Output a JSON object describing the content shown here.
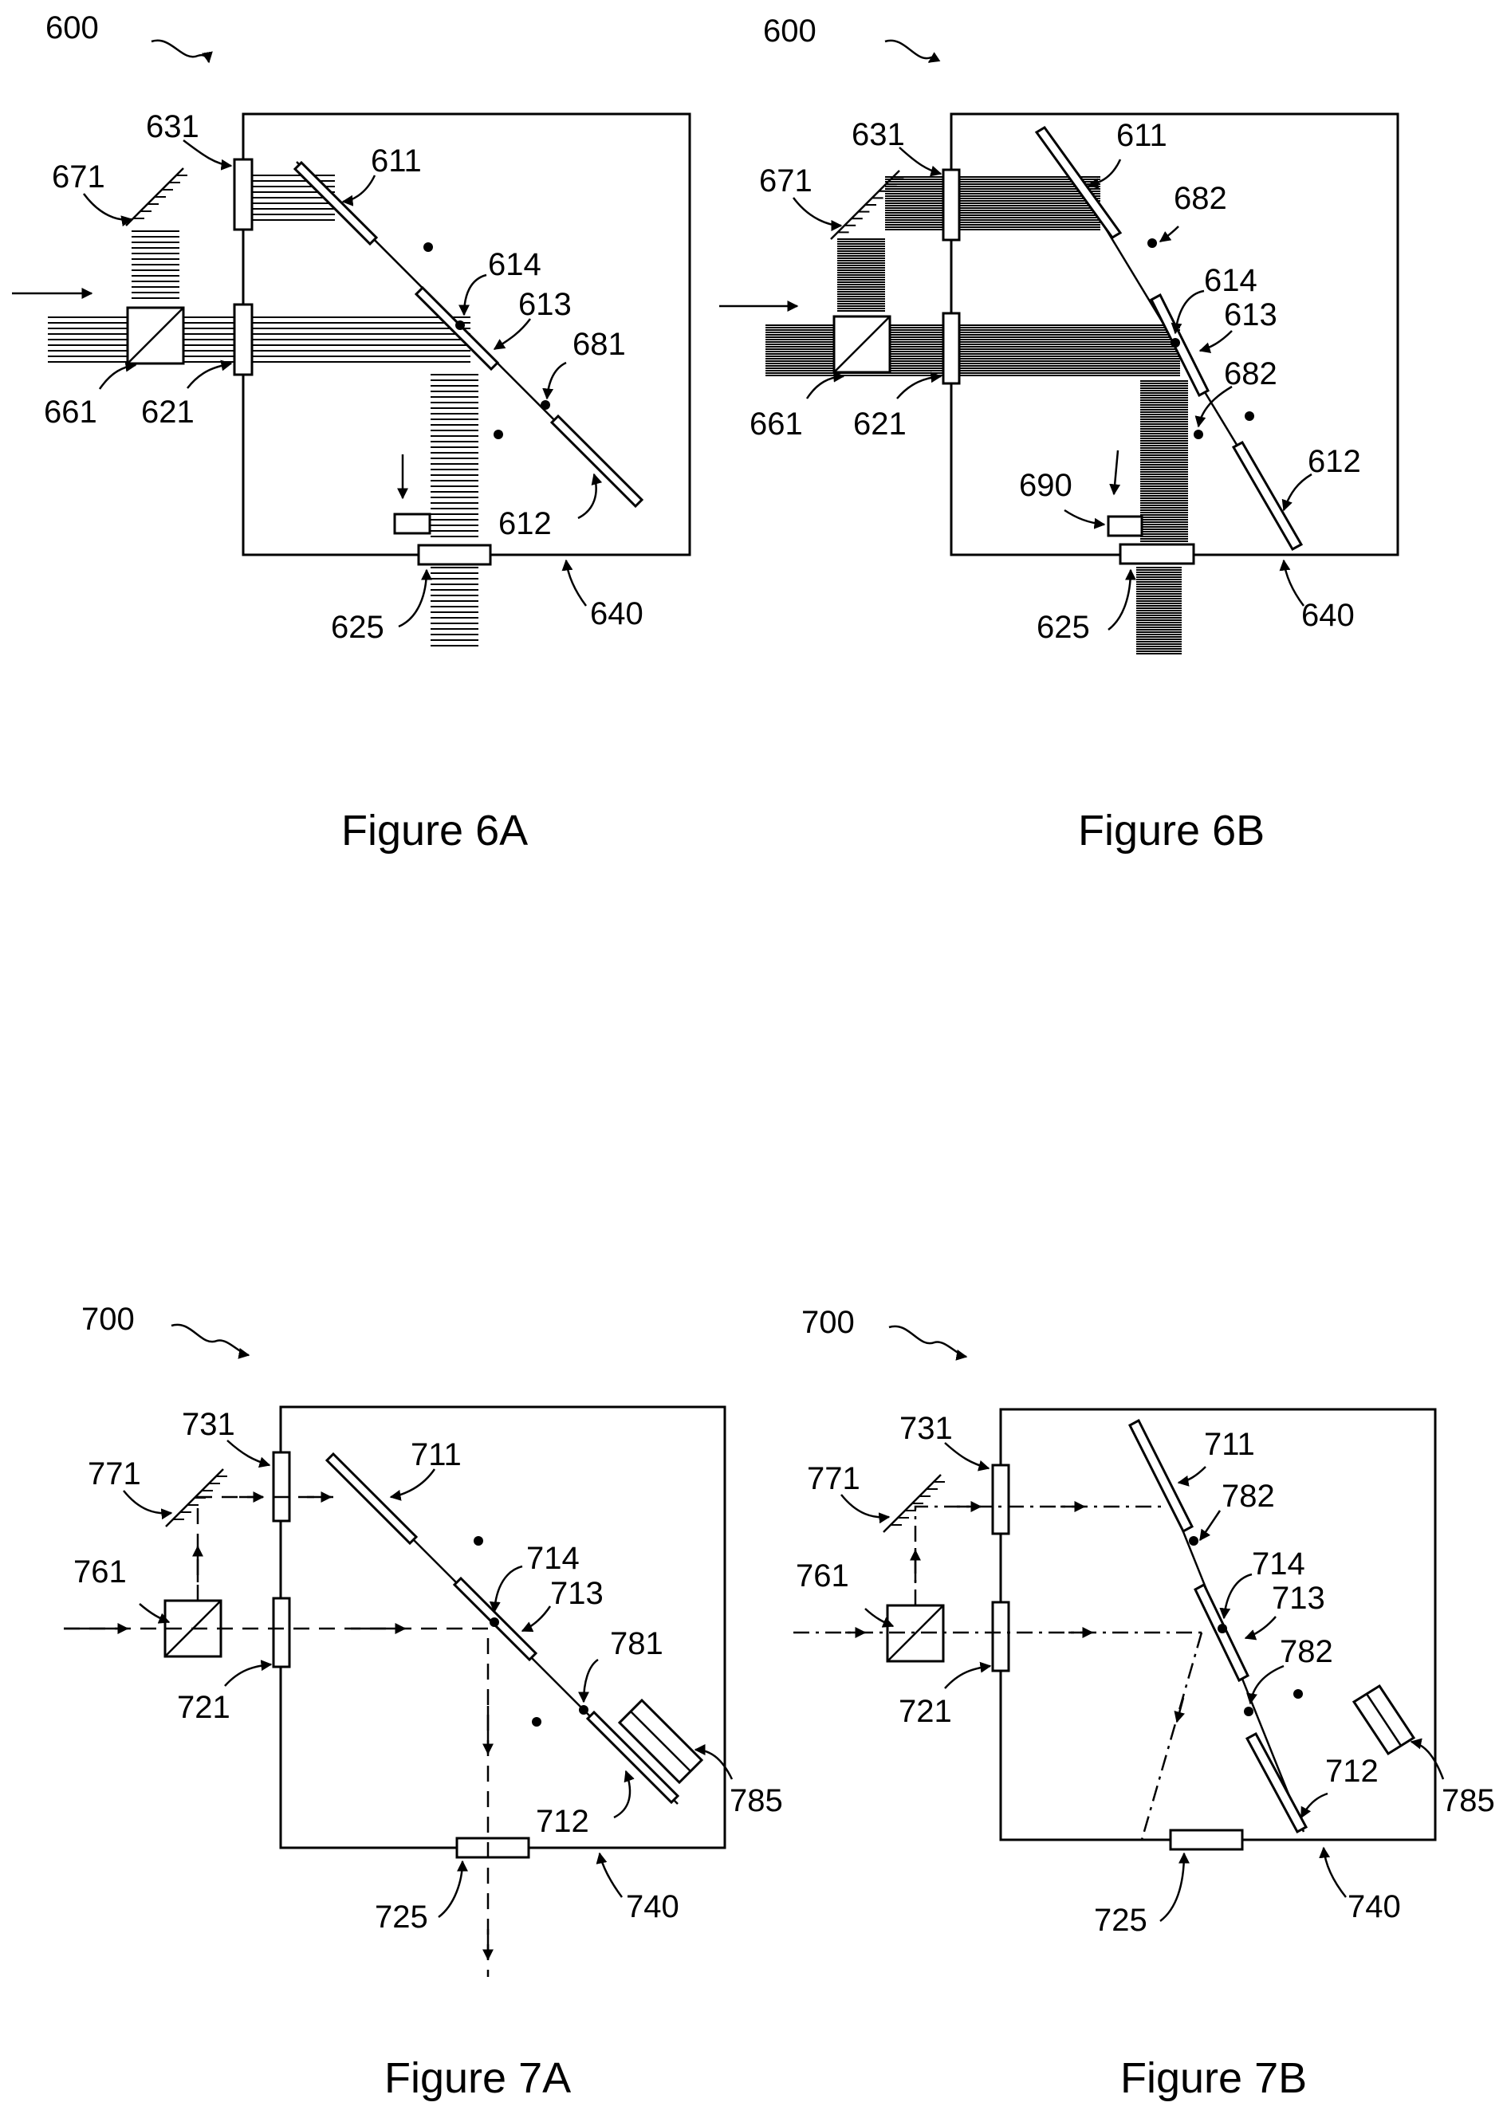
{
  "figures": {
    "fig6a": {
      "caption": "Figure 6A",
      "labels": {
        "l600": "600",
        "l631": "631",
        "l611": "611",
        "l671": "671",
        "l614": "614",
        "l613": "613",
        "l681": "681",
        "l661": "661",
        "l621": "621",
        "l612": "612",
        "l625": "625",
        "l640": "640"
      }
    },
    "fig6b": {
      "caption": "Figure 6B",
      "labels": {
        "l600": "600",
        "l631": "631",
        "l611": "611",
        "l682a": "682",
        "l671": "671",
        "l614": "614",
        "l613": "613",
        "l682b": "682",
        "l661": "661",
        "l621": "621",
        "l612": "612",
        "l690": "690",
        "l625": "625",
        "l640": "640"
      }
    },
    "fig7a": {
      "caption": "Figure 7A",
      "labels": {
        "l700": "700",
        "l731": "731",
        "l711": "711",
        "l771": "771",
        "l761": "761",
        "l714": "714",
        "l713": "713",
        "l781": "781",
        "l721": "721",
        "l712": "712",
        "l785": "785",
        "l725": "725",
        "l740": "740"
      }
    },
    "fig7b": {
      "caption": "Figure 7B",
      "labels": {
        "l700": "700",
        "l731": "731",
        "l711": "711",
        "l771": "771",
        "l782a": "782",
        "l761": "761",
        "l714": "714",
        "l713": "713",
        "l782b": "782",
        "l721": "721",
        "l712": "712",
        "l785": "785",
        "l725": "725",
        "l740": "740"
      }
    }
  }
}
